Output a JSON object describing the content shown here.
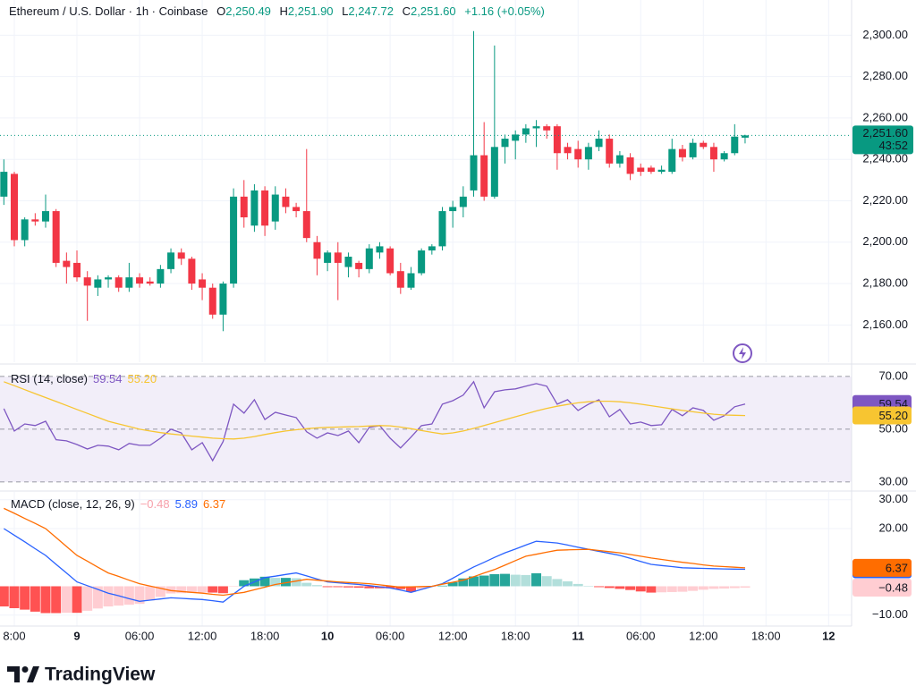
{
  "header": {
    "symbol": "Ethereum / U.S. Dollar · 1h · Coinbase",
    "open_key": "O",
    "open": "2,250.49",
    "high_key": "H",
    "high": "2,251.90",
    "low_key": "L",
    "low": "2,247.72",
    "close_key": "C",
    "close": "2,251.60",
    "change": "+1.16 (+0.05%)"
  },
  "branding": "TradingView",
  "chart_data": [
    {
      "type": "candlestick",
      "x": [
        17,
        18,
        19,
        20,
        21,
        22,
        23,
        24,
        25,
        26,
        27,
        28,
        29,
        30,
        31,
        32,
        33,
        34,
        35,
        36,
        37,
        38,
        39,
        40,
        41,
        42,
        43,
        44,
        45,
        46,
        47,
        48,
        49,
        50,
        51,
        52,
        53,
        54,
        55,
        56,
        57,
        58,
        59,
        60,
        61,
        62,
        63,
        64,
        65,
        66,
        67,
        68,
        69,
        70,
        71,
        72,
        73,
        74,
        75,
        76,
        77,
        78,
        79,
        80,
        81,
        82,
        83,
        84,
        85,
        86,
        87,
        88
      ],
      "open": [
        2222,
        2233,
        2201,
        2211,
        2210,
        2215,
        2191,
        2190,
        2183,
        2178,
        2182,
        2183,
        2178,
        2183,
        2181,
        2180,
        2187,
        2195,
        2192,
        2182,
        2178,
        2165,
        2180,
        2222,
        2208,
        2225,
        2210,
        2222,
        2217,
        2215,
        2200,
        2190,
        2195,
        2188,
        2190,
        2187,
        2195,
        2197,
        2186,
        2178,
        2185,
        2196,
        2198,
        2215,
        2217,
        2225,
        2242,
        2222,
        2246,
        2249,
        2252,
        2255,
        2256,
        2256,
        2246,
        2245,
        2240,
        2246,
        2250,
        2238,
        2241,
        2236,
        2236,
        2234,
        2234,
        2245,
        2241,
        2248,
        2246,
        2240,
        2243,
        2250.49
      ],
      "high": [
        2240,
        2234,
        2212,
        2214,
        2223,
        2216,
        2195,
        2196,
        2186,
        2184,
        2184,
        2184,
        2190,
        2185,
        2183,
        2189,
        2197,
        2197,
        2193,
        2185,
        2180,
        2181,
        2226,
        2230,
        2228,
        2227,
        2227,
        2226,
        2219,
        2245,
        2203,
        2196,
        2200,
        2195,
        2191,
        2199,
        2200,
        2198,
        2190,
        2188,
        2197,
        2199,
        2217,
        2220,
        2227,
        2302,
        2258,
        2295,
        2252,
        2254,
        2257,
        2259,
        2257,
        2257,
        2248,
        2249,
        2248,
        2254,
        2252,
        2244,
        2243,
        2238,
        2237,
        2237,
        2250,
        2247,
        2250,
        2249,
        2248,
        2244,
        2257,
        2251.9
      ],
      "low": [
        2218,
        2198,
        2198,
        2208,
        2207,
        2188,
        2180,
        2181,
        2162,
        2174,
        2178,
        2176,
        2176,
        2178,
        2179,
        2178,
        2185,
        2189,
        2177,
        2172,
        2163,
        2157,
        2178,
        2207,
        2205,
        2203,
        2206,
        2214,
        2212,
        2200,
        2184,
        2186,
        2172,
        2183,
        2183,
        2185,
        2192,
        2184,
        2175,
        2177,
        2184,
        2194,
        2196,
        2207,
        2212,
        2222,
        2220,
        2221,
        2238,
        2240,
        2248,
        2246,
        2250,
        2235,
        2240,
        2236,
        2235,
        2244,
        2236,
        2236,
        2230,
        2232,
        2233,
        2233,
        2233,
        2239,
        2240,
        2245,
        2234,
        2239,
        2242,
        2247.72
      ],
      "close": [
        2234,
        2201,
        2211,
        2210,
        2215,
        2190,
        2188,
        2183,
        2179,
        2182,
        2183,
        2178,
        2183,
        2180,
        2180,
        2187,
        2195,
        2192,
        2180,
        2178,
        2165,
        2180,
        2222,
        2212,
        2225,
        2208,
        2223,
        2217,
        2215,
        2202,
        2192,
        2195,
        2190,
        2193,
        2187,
        2197,
        2198,
        2185,
        2178,
        2185,
        2196,
        2198,
        2215,
        2217,
        2222,
        2242,
        2222,
        2246,
        2250,
        2252,
        2255,
        2256,
        2254,
        2243,
        2243,
        2240,
        2246,
        2250,
        2238,
        2242,
        2233,
        2234,
        2234,
        2235,
        2245,
        2241,
        2248,
        2246,
        2240,
        2243,
        2251,
        2251.6
      ],
      "up_color": "#089981",
      "down_color": "#f23645",
      "xlim": [
        16.63,
        98.2
      ],
      "ylim": [
        2142,
        2317
      ],
      "grid": true,
      "yticks": [
        {
          "value": 2160,
          "label": "2,160.00"
        },
        {
          "value": 2180,
          "label": "2,180.00"
        },
        {
          "value": 2200,
          "label": "2,200.00"
        },
        {
          "value": 2220,
          "label": "2,220.00"
        },
        {
          "value": 2240,
          "label": "2,240.00"
        },
        {
          "value": 2260,
          "label": "2,260.00"
        },
        {
          "value": 2280,
          "label": "2,280.00"
        },
        {
          "value": 2300,
          "label": "2,300.00"
        }
      ],
      "last_price": {
        "value": 2251.6,
        "label": "2,251.60"
      },
      "countdown": "43:52"
    },
    {
      "type": "line",
      "title": "RSI (14, close)",
      "x": [
        17,
        18,
        19,
        20,
        21,
        22,
        23,
        24,
        25,
        26,
        27,
        28,
        29,
        30,
        31,
        32,
        33,
        34,
        35,
        36,
        37,
        38,
        39,
        40,
        41,
        42,
        43,
        44,
        45,
        46,
        47,
        48,
        49,
        50,
        51,
        52,
        53,
        54,
        55,
        56,
        57,
        58,
        59,
        60,
        61,
        62,
        63,
        64,
        65,
        66,
        67,
        68,
        69,
        70,
        71,
        72,
        73,
        74,
        75,
        76,
        77,
        78,
        79,
        80,
        81,
        82,
        83,
        84,
        85,
        86,
        87,
        88
      ],
      "series": [
        {
          "color": "#7e57c2",
          "last_value_label": "59.54",
          "values": [
            57.8,
            49.3,
            52,
            51.4,
            53,
            46,
            45.6,
            44.2,
            42.5,
            43.9,
            43.6,
            42.2,
            44.6,
            43.9,
            43.9,
            46.6,
            50,
            48.6,
            42.2,
            44.9,
            38.1,
            45.3,
            59.5,
            56.1,
            61.2,
            53.7,
            56.4,
            55.4,
            54.4,
            49,
            46.6,
            48.6,
            47.6,
            49.3,
            44.9,
            50.7,
            51.4,
            46.6,
            42.9,
            47,
            51.4,
            52,
            59.5,
            60.8,
            62.9,
            68,
            58.1,
            64.2,
            64.9,
            65.3,
            66.3,
            67.3,
            66.3,
            59.5,
            61.2,
            57.1,
            59.5,
            61.2,
            54.7,
            57.5,
            52,
            52.7,
            51.4,
            51.7,
            57.5,
            55.1,
            58.1,
            57.1,
            53.4,
            55.1,
            58.5,
            59.54
          ]
        },
        {
          "color": "#f7c531",
          "last_value_label": "55.20",
          "values": [
            68,
            66.5,
            65,
            63.5,
            62,
            60.5,
            59,
            57.5,
            56,
            54.5,
            53,
            52,
            51,
            50,
            49.3,
            48.7,
            48.2,
            47.8,
            47.4,
            47,
            46.6,
            46.4,
            46.3,
            46.6,
            47.2,
            48,
            48.7,
            49.3,
            49.8,
            50.2,
            50.5,
            50.7,
            50.8,
            50.9,
            51,
            51.2,
            51.4,
            51.3,
            50.8,
            50.2,
            49.5,
            48.8,
            48.2,
            48.6,
            49.3,
            50.3,
            51.4,
            52.5,
            53.6,
            54.7,
            55.8,
            56.9,
            57.9,
            58.7,
            59.4,
            60,
            60.4,
            60.6,
            60.6,
            60.4,
            60,
            59.5,
            58.9,
            58.3,
            57.7,
            57.1,
            56.6,
            56.1,
            55.7,
            55.4,
            55.3,
            55.2
          ]
        }
      ],
      "xlim": [
        16.63,
        98.2
      ],
      "ylim": [
        26.9,
        73.7
      ],
      "grid": "dashed",
      "band_color": "#7e57c2",
      "yticks": [
        {
          "value": 70,
          "label": "70.00"
        },
        {
          "value": 50,
          "label": "50.00"
        },
        {
          "value": 30,
          "label": "30.00"
        }
      ]
    },
    {
      "type": "line",
      "title": "MACD (close, 12, 26, 9)",
      "x": [
        17,
        18,
        19,
        20,
        21,
        22,
        23,
        24,
        25,
        26,
        27,
        28,
        29,
        30,
        31,
        32,
        33,
        34,
        35,
        36,
        37,
        38,
        39,
        40,
        41,
        42,
        43,
        44,
        45,
        46,
        47,
        48,
        49,
        50,
        51,
        52,
        53,
        54,
        55,
        56,
        57,
        58,
        59,
        60,
        61,
        62,
        63,
        64,
        65,
        66,
        67,
        68,
        69,
        70,
        71,
        72,
        73,
        74,
        75,
        76,
        77,
        78,
        79,
        80,
        81,
        82,
        83,
        84,
        85,
        86,
        87,
        88
      ],
      "series": [
        {
          "style": "histogram",
          "color": "#ffcdd2",
          "last_value_label": "−0.48",
          "colors": {
            "up_grow": "#26a69a",
            "up_fall": "#b2dfdb",
            "down_grow": "#ff5252",
            "down_fall": "#ffcdd2"
          },
          "values": [
            -7,
            -7.6,
            -8.1,
            -8.8,
            -9.3,
            -9.3,
            -9.2,
            -9.2,
            -8.5,
            -7.7,
            -7,
            -6.7,
            -6.4,
            -6.1,
            -4.9,
            -3.7,
            -2.5,
            -2.4,
            -2.3,
            -2.2,
            -2.2,
            -2.4,
            -0.1,
            2.1,
            2.7,
            3.3,
            2.9,
            2.9,
            2.8,
            1.2,
            0.4,
            -0.3,
            -0.3,
            -0.4,
            -0.5,
            -0.7,
            -0.7,
            -0.7,
            -1,
            -1.9,
            -1,
            -0.1,
            0.2,
            1.4,
            2.7,
            3.4,
            3.7,
            4.2,
            4.3,
            4,
            3.9,
            4.5,
            3.5,
            2.5,
            1.7,
            0.8,
            0,
            -0.3,
            -0.6,
            -0.9,
            -1.3,
            -1.8,
            -2.2,
            -2.1,
            -2,
            -1.9,
            -1.6,
            -1.2,
            -0.9,
            -0.8,
            -0.64,
            -0.48
          ]
        },
        {
          "color": "#2962ff",
          "last_value_label": "5.89",
          "values": [
            20,
            17.7,
            15.4,
            13,
            10.7,
            7.6,
            4.6,
            1.5,
            0.2,
            -1.1,
            -2.4,
            -3.3,
            -4.3,
            -5.2,
            -4.8,
            -4.4,
            -4,
            -4.2,
            -4.4,
            -4.6,
            -5,
            -5.5,
            -2.7,
            0,
            1.5,
            3,
            3.5,
            4.1,
            4.6,
            3.6,
            2.5,
            1.5,
            1.2,
            0.9,
            0.6,
            0.2,
            -0.2,
            -0.6,
            -1.3,
            -2.1,
            -1.1,
            -0.1,
            0.9,
            2.8,
            4.8,
            6.7,
            8.3,
            10,
            11.6,
            12.9,
            14.3,
            15.6,
            15.3,
            15,
            14.3,
            13.5,
            12.8,
            12.1,
            11.4,
            10.7,
            9.7,
            8.6,
            7.6,
            7.2,
            6.8,
            6.4,
            6.3,
            6.2,
            6.1,
            6,
            5.96,
            5.89
          ]
        },
        {
          "color": "#ff6d00",
          "last_value_label": "6.37",
          "values": [
            27,
            25.3,
            23.5,
            21.8,
            20,
            16.9,
            13.8,
            10.7,
            8.7,
            6.6,
            4.6,
            3.4,
            2.1,
            0.9,
            0.1,
            -0.7,
            -1.5,
            -1.8,
            -2.1,
            -2.4,
            -2.8,
            -3.1,
            -2.6,
            -2.1,
            -1.2,
            -0.3,
            0.6,
            1.2,
            1.8,
            2.4,
            2.1,
            1.8,
            1.5,
            1.3,
            1.1,
            0.9,
            0.5,
            0.1,
            -0.3,
            -0.2,
            -0.1,
            0,
            0.7,
            1.4,
            2.1,
            3.3,
            4.6,
            5.8,
            7.3,
            8.9,
            10.4,
            11.1,
            11.8,
            12.5,
            12.6,
            12.7,
            12.8,
            12.4,
            12,
            11.6,
            11,
            10.4,
            9.8,
            9.3,
            8.8,
            8.3,
            7.9,
            7.4,
            7,
            6.8,
            6.6,
            6.37
          ]
        }
      ],
      "xlim": [
        16.63,
        98.2
      ],
      "ylim": [
        -13.8,
        32.7
      ],
      "grid": true,
      "yticks": [
        {
          "value": 30,
          "label": "30.00"
        },
        {
          "value": 20,
          "label": "20.00"
        },
        {
          "value": -10,
          "label": "−10.00"
        }
      ],
      "xticks": [
        {
          "value": 18,
          "label": "8:00"
        },
        {
          "value": 24,
          "label": "9"
        },
        {
          "value": 30,
          "label": "06:00"
        },
        {
          "value": 36,
          "label": "12:00"
        },
        {
          "value": 42,
          "label": "18:00"
        },
        {
          "value": 48,
          "label": "10"
        },
        {
          "value": 54,
          "label": "06:00"
        },
        {
          "value": 60,
          "label": "12:00"
        },
        {
          "value": 66,
          "label": "18:00"
        },
        {
          "value": 72,
          "label": "11"
        },
        {
          "value": 78,
          "label": "06:00"
        },
        {
          "value": 84,
          "label": "12:00"
        },
        {
          "value": 90,
          "label": "18:00"
        },
        {
          "value": 96,
          "label": "12"
        }
      ]
    }
  ]
}
